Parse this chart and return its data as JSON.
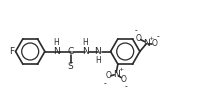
{
  "bg_color": "#ffffff",
  "line_color": "#2a2a2a",
  "line_width": 1.2,
  "font_size": 6.5,
  "font_size_small": 5.5,
  "xlim": [
    0,
    10.5
  ],
  "ylim": [
    -1.5,
    2.5
  ],
  "figsize": [
    2.15,
    1.03
  ],
  "dpi": 100
}
